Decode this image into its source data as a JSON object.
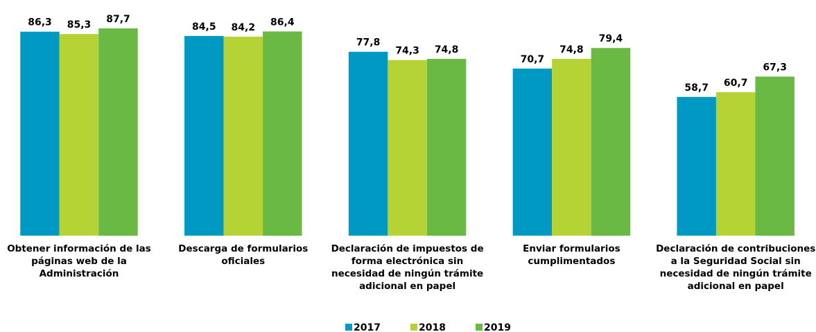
{
  "chart_data": {
    "type": "bar",
    "categories": [
      "Obtener información de las páginas web de la Administración",
      "Descarga de formularios oficiales",
      "Declaración de impuestos de forma electrónica sin necesidad de ningún trámite adicional en papel",
      "Enviar formularios cumplimentados",
      "Declaración de contribuciones a la Seguridad Social sin necesidad de ningún trámite adicional en papel"
    ],
    "series": [
      {
        "name": "2017",
        "color": "#0099c4",
        "values": [
          86.3,
          84.5,
          77.8,
          70.7,
          58.7
        ],
        "value_labels": [
          "86,3",
          "84,5",
          "77,8",
          "70,7",
          "58,7"
        ]
      },
      {
        "name": "2018",
        "color": "#b5d334",
        "values": [
          85.3,
          84.2,
          74.3,
          74.8,
          60.7
        ],
        "value_labels": [
          "85,3",
          "84,2",
          "74,3",
          "74,8",
          "60,7"
        ]
      },
      {
        "name": "2019",
        "color": "#6ab944",
        "values": [
          87.7,
          86.4,
          74.8,
          79.4,
          67.3
        ],
        "value_labels": [
          "87,7",
          "86,4",
          "74,8",
          "79,4",
          "67,3"
        ]
      }
    ]
  }
}
